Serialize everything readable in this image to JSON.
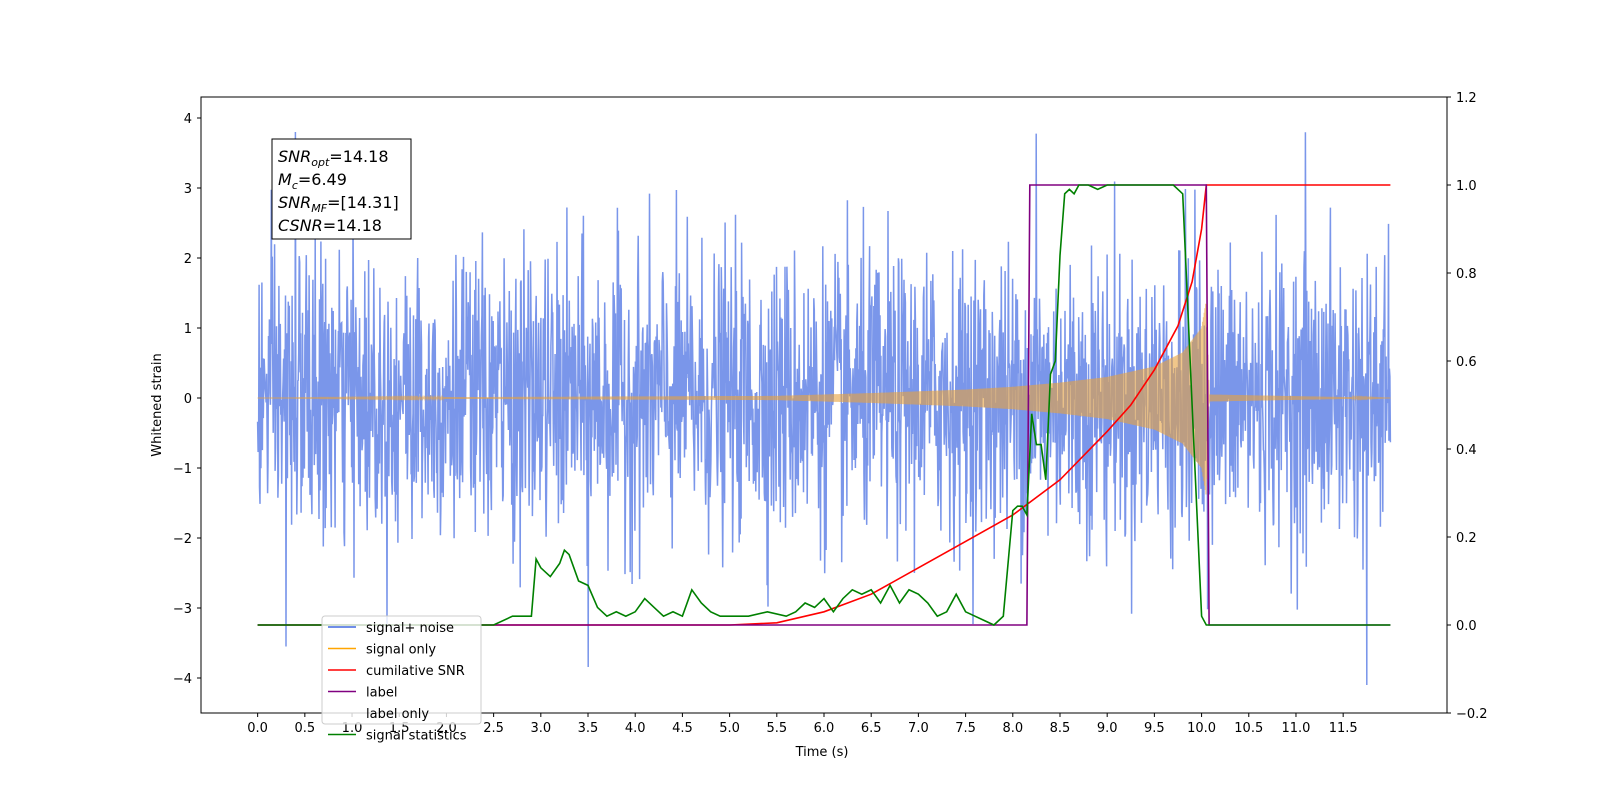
{
  "chart_data": {
    "type": "line",
    "title": "",
    "xlabel": "Time (s)",
    "ylabel": "Whitened strain",
    "x_ticks": [
      "0.0",
      "0.5",
      "1.0",
      "1.5",
      "2.0",
      "2.5",
      "3.0",
      "3.5",
      "4.0",
      "4.5",
      "5.0",
      "5.5",
      "6.0",
      "6.5",
      "7.0",
      "7.5",
      "8.0",
      "8.5",
      "9.0",
      "9.5",
      "10.0",
      "10.5",
      "11.0",
      "11.5"
    ],
    "y_ticks_left": [
      "4",
      "3",
      "2",
      "1",
      "0",
      "−1",
      "−2",
      "−3",
      "−4"
    ],
    "y_ticks_right": [
      "1.2",
      "1.0",
      "0.8",
      "0.6",
      "0.4",
      "0.2",
      "0.0",
      "−0.2"
    ],
    "xlim": [
      -0.6,
      12.6
    ],
    "ylim_left": [
      -4.5,
      4.3
    ],
    "ylim_right": [
      -0.2,
      1.2
    ],
    "legend_position": "lower-left",
    "annotation": {
      "lines": [
        {
          "sym": "SNR",
          "sub": "opt",
          "value": "=14.18"
        },
        {
          "sym": "M",
          "sub": "c",
          "value": "=6.49"
        },
        {
          "sym": "SNR",
          "sub": "MF",
          "value": "=[14.31]"
        },
        {
          "sym": "CSNR",
          "sub": "",
          "value": "=14.18"
        }
      ]
    },
    "series": [
      {
        "name": "signal+ noise",
        "axis": "left",
        "color": "#4169e1",
        "kind": "noise",
        "t_range": [
          0.0,
          12.0
        ],
        "envelope_std": 1.0,
        "peak_values": [
          [
            0.4,
            3.8
          ],
          [
            8.25,
            3.85
          ],
          [
            11.1,
            3.8
          ],
          [
            3.5,
            -3.85
          ],
          [
            11.75,
            -4.1
          ],
          [
            0.3,
            -3.55
          ]
        ]
      },
      {
        "name": "signal only",
        "axis": "left",
        "color": "#e8a23c",
        "kind": "chirp",
        "t_range": [
          0.0,
          12.0
        ],
        "merger_time": 10.05,
        "amplitude_points": [
          [
            0.0,
            0.0
          ],
          [
            5.5,
            0.03
          ],
          [
            6.5,
            0.07
          ],
          [
            7.5,
            0.12
          ],
          [
            8.0,
            0.16
          ],
          [
            8.5,
            0.22
          ],
          [
            9.0,
            0.3
          ],
          [
            9.5,
            0.45
          ],
          [
            9.8,
            0.65
          ],
          [
            10.0,
            1.0
          ],
          [
            10.05,
            1.4
          ],
          [
            10.08,
            0.05
          ],
          [
            12.0,
            0.0
          ]
        ]
      },
      {
        "name": "cumilative SNR",
        "axis": "right",
        "color": "#ff0000",
        "x": [
          0.0,
          4.0,
          5.0,
          5.5,
          6.0,
          6.5,
          7.0,
          7.5,
          8.0,
          8.5,
          9.0,
          9.25,
          9.5,
          9.75,
          9.9,
          10.0,
          10.05,
          12.0
        ],
        "y": [
          0.0,
          0.0,
          0.0,
          0.005,
          0.03,
          0.07,
          0.13,
          0.19,
          0.25,
          0.33,
          0.44,
          0.5,
          0.58,
          0.68,
          0.78,
          0.9,
          1.0,
          1.0
        ]
      },
      {
        "name": "label",
        "axis": "right",
        "color": "#800080",
        "x": [
          0.0,
          8.15,
          8.18,
          10.05,
          10.08,
          12.0
        ],
        "y": [
          0.0,
          0.0,
          1.0,
          1.0,
          0.0,
          0.0
        ]
      },
      {
        "name": "signal statistics",
        "axis": "right",
        "color": "#008000",
        "x": [
          0.0,
          2.5,
          2.7,
          2.9,
          2.95,
          3.0,
          3.1,
          3.2,
          3.25,
          3.3,
          3.4,
          3.5,
          3.6,
          3.7,
          3.8,
          3.9,
          4.0,
          4.1,
          4.2,
          4.3,
          4.4,
          4.5,
          4.6,
          4.7,
          4.8,
          4.9,
          5.0,
          5.2,
          5.4,
          5.6,
          5.7,
          5.8,
          5.9,
          6.0,
          6.1,
          6.2,
          6.3,
          6.4,
          6.5,
          6.6,
          6.7,
          6.8,
          6.9,
          7.0,
          7.1,
          7.2,
          7.3,
          7.4,
          7.5,
          7.6,
          7.7,
          7.8,
          7.9,
          8.0,
          8.05,
          8.1,
          8.15,
          8.2,
          8.25,
          8.3,
          8.35,
          8.4,
          8.45,
          8.5,
          8.55,
          8.6,
          8.65,
          8.7,
          8.8,
          8.9,
          9.0,
          9.1,
          9.2,
          9.3,
          9.4,
          9.5,
          9.6,
          9.7,
          9.8,
          9.9,
          10.0,
          10.05,
          10.08,
          12.0
        ],
        "y": [
          0.0,
          0.0,
          0.02,
          0.02,
          0.15,
          0.13,
          0.11,
          0.14,
          0.17,
          0.16,
          0.1,
          0.09,
          0.04,
          0.02,
          0.03,
          0.02,
          0.03,
          0.06,
          0.04,
          0.02,
          0.03,
          0.02,
          0.08,
          0.05,
          0.03,
          0.02,
          0.02,
          0.02,
          0.03,
          0.02,
          0.03,
          0.05,
          0.04,
          0.06,
          0.03,
          0.06,
          0.08,
          0.07,
          0.08,
          0.05,
          0.09,
          0.05,
          0.08,
          0.07,
          0.05,
          0.02,
          0.03,
          0.07,
          0.03,
          0.02,
          0.01,
          0.0,
          0.02,
          0.26,
          0.27,
          0.27,
          0.25,
          0.48,
          0.41,
          0.41,
          0.33,
          0.57,
          0.6,
          0.84,
          0.98,
          0.99,
          0.98,
          1.0,
          1.0,
          0.99,
          1.0,
          1.0,
          1.0,
          1.0,
          1.0,
          1.0,
          1.0,
          1.0,
          0.98,
          0.5,
          0.02,
          0.0,
          0.0,
          0.0
        ]
      }
    ],
    "legend": [
      {
        "label": "signal+ noise",
        "color": "#4169e1"
      },
      {
        "label": "signal only",
        "color": "#ffa500"
      },
      {
        "label": "cumilative SNR",
        "color": "#ff0000"
      },
      {
        "label": "label",
        "color": "#800080"
      },
      {
        "label": "label only",
        "color": "#000000"
      },
      {
        "label": "signal statistics",
        "color": "#008000"
      }
    ]
  }
}
